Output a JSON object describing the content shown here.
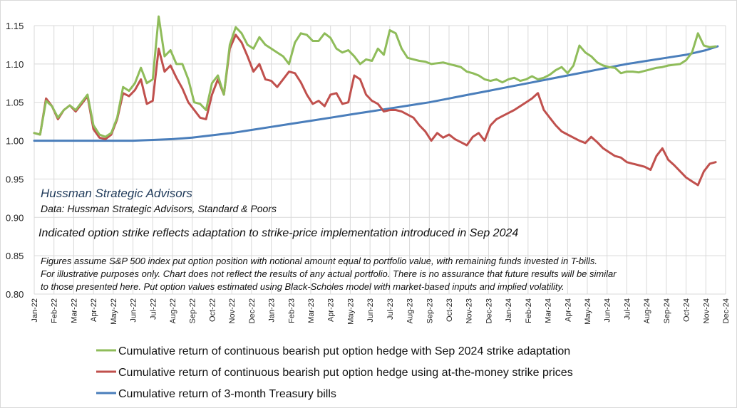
{
  "chart_data": {
    "type": "line",
    "ylim": [
      0.8,
      1.15
    ],
    "yticks": [
      "0.80",
      "0.85",
      "0.90",
      "0.95",
      "1.00",
      "1.05",
      "1.10",
      "1.15"
    ],
    "ytick_values": [
      0.8,
      0.85,
      0.9,
      0.95,
      1.0,
      1.05,
      1.1,
      1.15
    ],
    "xlim": [
      0,
      35
    ],
    "xticks": [
      "Jan-22",
      "Feb-22",
      "Mar-22",
      "Apr-22",
      "May-22",
      "Jun-22",
      "Jul-22",
      "Aug-22",
      "Sep-22",
      "Oct-22",
      "Nov-22",
      "Dec-22",
      "Jan-23",
      "Feb-23",
      "Mar-23",
      "Apr-23",
      "May-23",
      "Jun-23",
      "Jul-23",
      "Aug-23",
      "Sep-23",
      "Oct-23",
      "Nov-23",
      "Dec-23",
      "Jan-24",
      "Feb-24",
      "Mar-24",
      "Apr-24",
      "May-24",
      "Jun-24",
      "Jul-24",
      "Aug-24",
      "Sep-24",
      "Oct-24",
      "Nov-24",
      "Dec-24"
    ],
    "grid": true,
    "legend_position": "bottom",
    "series": [
      {
        "name": "Cumulative return of continuous bearish put option hedge with Sep 2024 strike adaptation",
        "color": "#8fbc5a",
        "x": [
          0,
          0.3,
          0.6,
          0.9,
          1.2,
          1.5,
          1.8,
          2.1,
          2.4,
          2.7,
          3.0,
          3.3,
          3.6,
          3.9,
          4.2,
          4.5,
          4.8,
          5.1,
          5.4,
          5.7,
          6.0,
          6.3,
          6.6,
          6.9,
          7.2,
          7.5,
          7.8,
          8.1,
          8.4,
          8.7,
          9.0,
          9.3,
          9.6,
          9.9,
          10.2,
          10.5,
          10.8,
          11.1,
          11.4,
          11.7,
          12.0,
          12.3,
          12.6,
          12.9,
          13.2,
          13.5,
          13.8,
          14.1,
          14.4,
          14.7,
          15.0,
          15.3,
          15.6,
          15.9,
          16.2,
          16.5,
          16.8,
          17.1,
          17.4,
          17.7,
          18.0,
          18.3,
          18.6,
          18.9,
          19.2,
          19.5,
          19.8,
          20.1,
          20.4,
          20.7,
          21.0,
          21.3,
          21.6,
          21.9,
          22.2,
          22.5,
          22.8,
          23.1,
          23.4,
          23.7,
          24.0,
          24.3,
          24.6,
          24.9,
          25.2,
          25.5,
          25.8,
          26.1,
          26.4,
          26.7,
          27.0,
          27.3,
          27.6,
          27.9,
          28.2,
          28.5,
          28.8,
          29.1,
          29.4,
          29.7,
          30.0,
          30.3,
          30.6,
          30.9,
          31.2,
          31.5,
          31.8,
          32.1,
          32.4,
          32.7,
          33.0,
          33.3,
          33.6,
          33.9,
          34.2,
          34.5
        ],
        "y": [
          1.01,
          1.008,
          1.052,
          1.045,
          1.03,
          1.04,
          1.046,
          1.04,
          1.05,
          1.06,
          1.02,
          1.008,
          1.005,
          1.01,
          1.03,
          1.07,
          1.065,
          1.075,
          1.095,
          1.075,
          1.08,
          1.162,
          1.11,
          1.118,
          1.1,
          1.1,
          1.08,
          1.05,
          1.048,
          1.04,
          1.075,
          1.085,
          1.06,
          1.125,
          1.148,
          1.14,
          1.125,
          1.12,
          1.135,
          1.125,
          1.12,
          1.115,
          1.11,
          1.1,
          1.128,
          1.14,
          1.138,
          1.13,
          1.13,
          1.14,
          1.134,
          1.12,
          1.115,
          1.118,
          1.11,
          1.1,
          1.106,
          1.104,
          1.12,
          1.112,
          1.144,
          1.14,
          1.12,
          1.108,
          1.106,
          1.104,
          1.103,
          1.1,
          1.101,
          1.102,
          1.1,
          1.098,
          1.096,
          1.09,
          1.088,
          1.085,
          1.08,
          1.078,
          1.08,
          1.076,
          1.08,
          1.082,
          1.078,
          1.08,
          1.084,
          1.08,
          1.082,
          1.086,
          1.092,
          1.096,
          1.088,
          1.098,
          1.124,
          1.115,
          1.11,
          1.102,
          1.098,
          1.096,
          1.095,
          1.088,
          1.09,
          1.09,
          1.089,
          1.091,
          1.093,
          1.095,
          1.096,
          1.098,
          1.099,
          1.1,
          1.105,
          1.115,
          1.14,
          1.124,
          1.122,
          1.123
        ]
      },
      {
        "name": "Cumulative return of continuous bearish put option hedge using at-the-money strike prices",
        "color": "#c0504d",
        "x": [
          0,
          0.3,
          0.6,
          0.9,
          1.2,
          1.5,
          1.8,
          2.1,
          2.4,
          2.7,
          3.0,
          3.3,
          3.6,
          3.9,
          4.2,
          4.5,
          4.8,
          5.1,
          5.4,
          5.7,
          6.0,
          6.3,
          6.6,
          6.9,
          7.2,
          7.5,
          7.8,
          8.1,
          8.4,
          8.7,
          9.0,
          9.3,
          9.6,
          9.9,
          10.2,
          10.5,
          10.8,
          11.1,
          11.4,
          11.7,
          12.0,
          12.3,
          12.6,
          12.9,
          13.2,
          13.5,
          13.8,
          14.1,
          14.4,
          14.7,
          15.0,
          15.3,
          15.6,
          15.9,
          16.2,
          16.5,
          16.8,
          17.1,
          17.4,
          17.7,
          18.0,
          18.3,
          18.6,
          18.9,
          19.2,
          19.5,
          19.8,
          20.1,
          20.4,
          20.7,
          21.0,
          21.3,
          21.6,
          21.9,
          22.2,
          22.5,
          22.8,
          23.1,
          23.4,
          23.7,
          24.0,
          24.3,
          24.6,
          24.9,
          25.2,
          25.5,
          25.8,
          26.1,
          26.4,
          26.7,
          27.0,
          27.3,
          27.6,
          27.9,
          28.2,
          28.5,
          28.8,
          29.1,
          29.4,
          29.7,
          30.0,
          30.3,
          30.6,
          30.9,
          31.2,
          31.5,
          31.8,
          32.1,
          32.4,
          32.7,
          33.0,
          33.3,
          33.6,
          33.9,
          34.2,
          34.5
        ],
        "y": [
          1.01,
          1.008,
          1.055,
          1.045,
          1.028,
          1.04,
          1.046,
          1.038,
          1.048,
          1.058,
          1.015,
          1.004,
          1.002,
          1.008,
          1.028,
          1.062,
          1.058,
          1.066,
          1.08,
          1.048,
          1.052,
          1.12,
          1.09,
          1.098,
          1.082,
          1.068,
          1.05,
          1.04,
          1.03,
          1.028,
          1.06,
          1.08,
          1.06,
          1.12,
          1.138,
          1.128,
          1.11,
          1.09,
          1.1,
          1.08,
          1.078,
          1.07,
          1.08,
          1.09,
          1.088,
          1.076,
          1.06,
          1.048,
          1.052,
          1.045,
          1.06,
          1.062,
          1.048,
          1.05,
          1.085,
          1.08,
          1.06,
          1.052,
          1.048,
          1.038,
          1.04,
          1.04,
          1.038,
          1.034,
          1.03,
          1.02,
          1.012,
          1.0,
          1.01,
          1.004,
          1.008,
          1.002,
          0.998,
          0.994,
          1.005,
          1.01,
          1.0,
          1.02,
          1.028,
          1.032,
          1.036,
          1.04,
          1.045,
          1.05,
          1.055,
          1.062,
          1.04,
          1.03,
          1.02,
          1.012,
          1.008,
          1.004,
          1.0,
          0.997,
          1.005,
          0.998,
          0.99,
          0.985,
          0.98,
          0.978,
          0.972,
          0.97,
          0.968,
          0.966,
          0.962,
          0.98,
          0.99,
          0.975,
          0.968,
          0.96,
          0.952,
          0.947,
          0.942,
          0.96,
          0.97,
          0.972
        ]
      },
      {
        "name": "Cumulative return of 3-month Treasury bills",
        "color": "#4a7ebb",
        "x": [
          0,
          3,
          5,
          6,
          7,
          8,
          9,
          10,
          11,
          12,
          13,
          14,
          15,
          16,
          17,
          18,
          19,
          20,
          21,
          22,
          23,
          24,
          25,
          26,
          27,
          28,
          29,
          30,
          31,
          32,
          33,
          34,
          34.6
        ],
        "y": [
          1.0,
          1.0,
          1.0,
          1.001,
          1.002,
          1.004,
          1.007,
          1.01,
          1.014,
          1.018,
          1.022,
          1.026,
          1.03,
          1.034,
          1.038,
          1.042,
          1.046,
          1.05,
          1.055,
          1.06,
          1.065,
          1.07,
          1.075,
          1.08,
          1.085,
          1.09,
          1.095,
          1.1,
          1.104,
          1.108,
          1.112,
          1.118,
          1.123
        ]
      }
    ]
  },
  "firm_label": "Hussman Strategic Advisors",
  "data_source": "Data: Hussman Strategic Advisors, Standard & Poors",
  "annotation_strike": "Indicated option strike reflects adaptation to strike-price implementation introduced in Sep 2024",
  "disclaimer": [
    "Figures assume S&P 500 index put option position with notional amount equal to portfolio value, with remaining funds invested in T-bills.",
    "For illustrative purposes only. Chart does not reflect the results of any actual portfolio. There is no assurance that future results will be similar",
    "to those presented  here. Put option values estimated using Black-Scholes model with market-based inputs and implied volatility."
  ]
}
